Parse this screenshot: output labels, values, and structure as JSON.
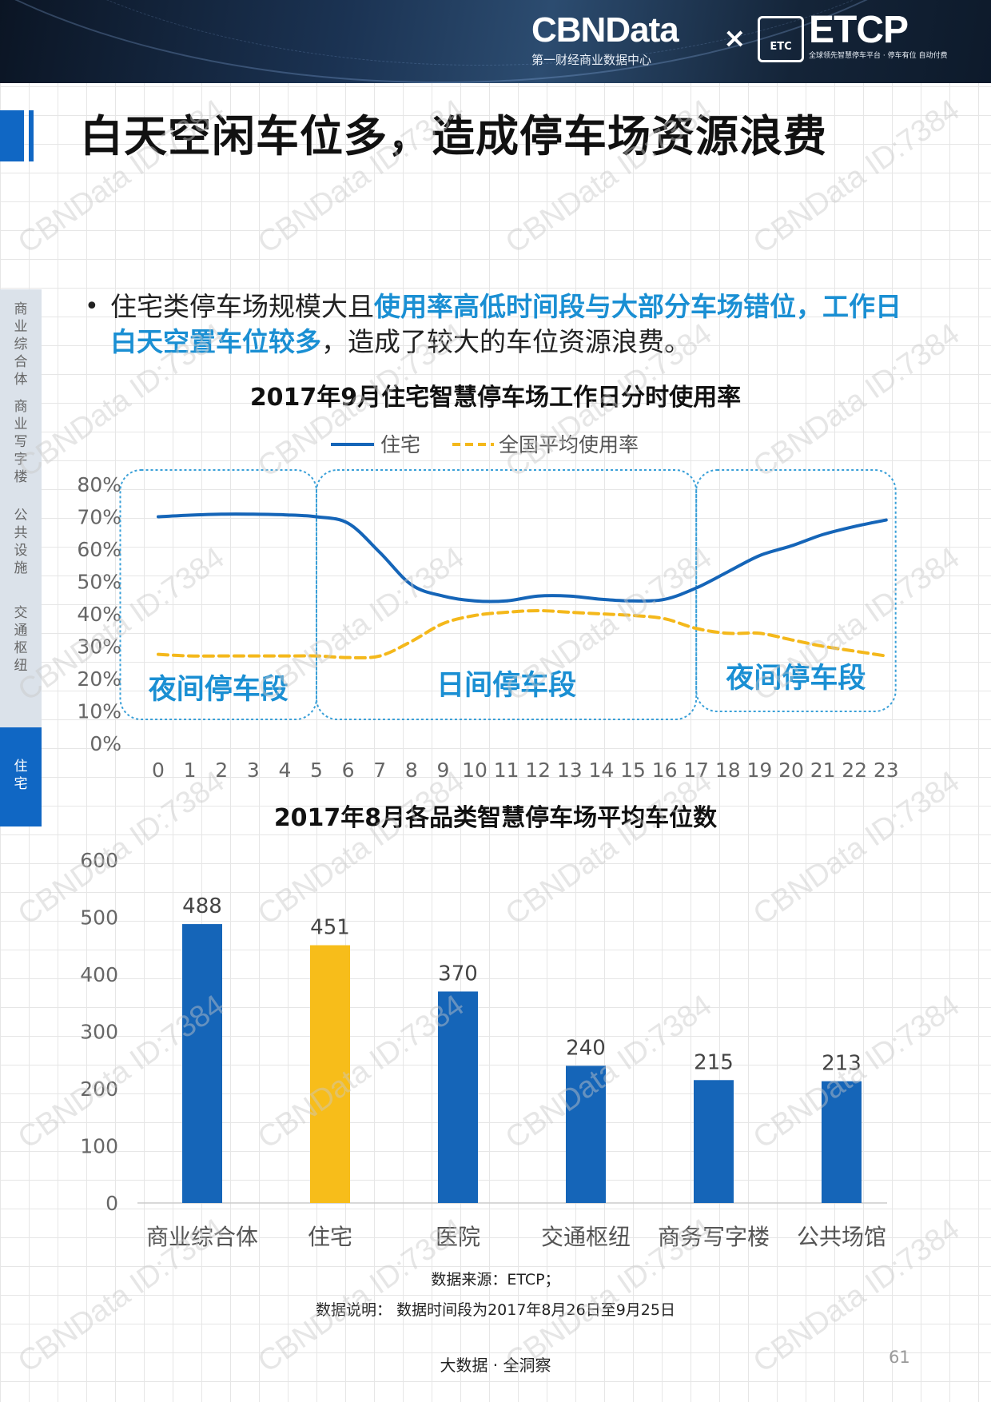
{
  "header": {
    "brand_left": "CBNData",
    "brand_left_sub": "第一财经商业数据中心",
    "brand_x": "×",
    "brand_logo_text": "ETC",
    "brand_right": "ETCP",
    "brand_right_sub": "全球领先智慧停车平台 · 停车有位 自动付费"
  },
  "title": "白天空闲车位多，造成停车场资源浪费",
  "sidebar": {
    "items": [
      {
        "label": "商业综合体",
        "active": false
      },
      {
        "label": "商业写字楼",
        "active": false
      },
      {
        "label": "公共设施",
        "active": false
      },
      {
        "label": "交通枢纽",
        "active": false
      },
      {
        "label": "住宅",
        "active": true
      }
    ]
  },
  "intro": {
    "bullet": "•",
    "part1": "住宅类停车场规模大且",
    "highlight1": "使用率高低时间段与大部分车场错位，工作日白天空置车位较多",
    "part2": "，造成了较大的车位资源浪费。"
  },
  "chart_data": [
    {
      "type": "line",
      "title": "2017年9月住宅智慧停车场工作日分时使用率",
      "x": [
        0,
        1,
        2,
        3,
        4,
        5,
        6,
        7,
        8,
        9,
        10,
        11,
        12,
        13,
        14,
        15,
        16,
        17,
        18,
        19,
        20,
        21,
        22,
        23
      ],
      "series": [
        {
          "name": "住宅",
          "color": "#1565b8",
          "style": "solid",
          "values": [
            70,
            70.5,
            70.8,
            70.8,
            70.6,
            70,
            68,
            59,
            49,
            45.5,
            44,
            44,
            45.5,
            45.5,
            44.5,
            44,
            44.5,
            48,
            53,
            58,
            61,
            64.5,
            67,
            69
          ]
        },
        {
          "name": "全国平均使用率",
          "color": "#f4b81b",
          "style": "dashed",
          "values": [
            27.5,
            27,
            27,
            27,
            27,
            27,
            26.5,
            27,
            31.5,
            37,
            39.5,
            40.5,
            41,
            40.5,
            40,
            39.5,
            38.5,
            35.5,
            34,
            34,
            32,
            30,
            28.5,
            27
          ]
        }
      ],
      "y_ticks": [
        "0%",
        "10%",
        "20%",
        "30%",
        "40%",
        "50%",
        "60%",
        "70%",
        "80%"
      ],
      "ylim": [
        0,
        80
      ],
      "legend": "top",
      "annotations": [
        "夜间停车段",
        "日间停车段",
        "夜间停车段"
      ]
    },
    {
      "type": "bar",
      "title": "2017年8月各品类智慧停车场平均车位数",
      "categories": [
        "商业综合体",
        "住宅",
        "医院",
        "交通枢纽",
        "商务写字楼",
        "公共场馆"
      ],
      "values": [
        488,
        451,
        370,
        240,
        215,
        213
      ],
      "colors": [
        "#1565b8",
        "#f7bd1a",
        "#1565b8",
        "#1565b8",
        "#1565b8",
        "#1565b8"
      ],
      "y_ticks": [
        "0",
        "100",
        "200",
        "300",
        "400",
        "500",
        "600"
      ],
      "ylim": [
        0,
        600
      ]
    }
  ],
  "source": "数据来源：ETCP；",
  "note": "数据说明： 数据时间段为2017年8月26日至9月25日",
  "footer": "大数据 · 全洞察",
  "page_number": "61",
  "watermark": "CBNData ID:7384"
}
